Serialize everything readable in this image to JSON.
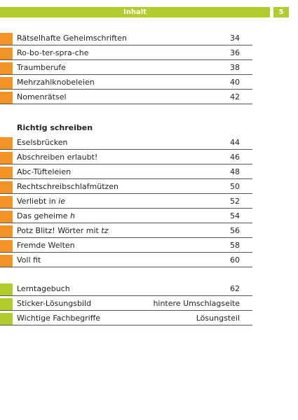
{
  "header": {
    "title": "Inhalt",
    "page_number": "5",
    "color": "#b3cb2d"
  },
  "sections": [
    {
      "tab_color": "#f39325",
      "entries": [
        {
          "title": "Rätselhafte Geheimschriften",
          "page": 34
        },
        {
          "title": "Ro-bo-ter-spra-che",
          "page": 36
        },
        {
          "title": "Traumberufe",
          "page": 38
        },
        {
          "title": "Mehrzahlknobeleien",
          "page": 40
        },
        {
          "title": "Nomenrätsel",
          "page": 42
        }
      ]
    },
    {
      "heading": "Richtig schreiben",
      "tab_color": "#f39325",
      "entries": [
        {
          "title": "Eselsbrücken",
          "page": 44
        },
        {
          "title": "Abschreiben erlaubt!",
          "page": 46
        },
        {
          "title": "Abc-Tüfteleien",
          "page": 48
        },
        {
          "title": "Rechtschreibschlafmützen",
          "page": 50
        },
        {
          "title": "Verliebt in",
          "title_italic": "ie",
          "page": 52
        },
        {
          "title": "Das geheime",
          "title_italic": "h",
          "page": 54
        },
        {
          "title": "Potz Blitz! Wörter mit",
          "title_italic": "tz",
          "page": 56
        },
        {
          "title": "Fremde Welten",
          "page": 58
        },
        {
          "title": "Voll fit",
          "page": 60
        }
      ]
    },
    {
      "tab_color": "#b3cb2d",
      "entries": [
        {
          "title": "Lerntagebuch",
          "page": 62
        },
        {
          "title": "Sticker-Lösungsbild",
          "page": "hintere Umschlagseite"
        },
        {
          "title": "Wichtige Fachbegriffe",
          "page": "Lösungsteil"
        }
      ]
    }
  ]
}
